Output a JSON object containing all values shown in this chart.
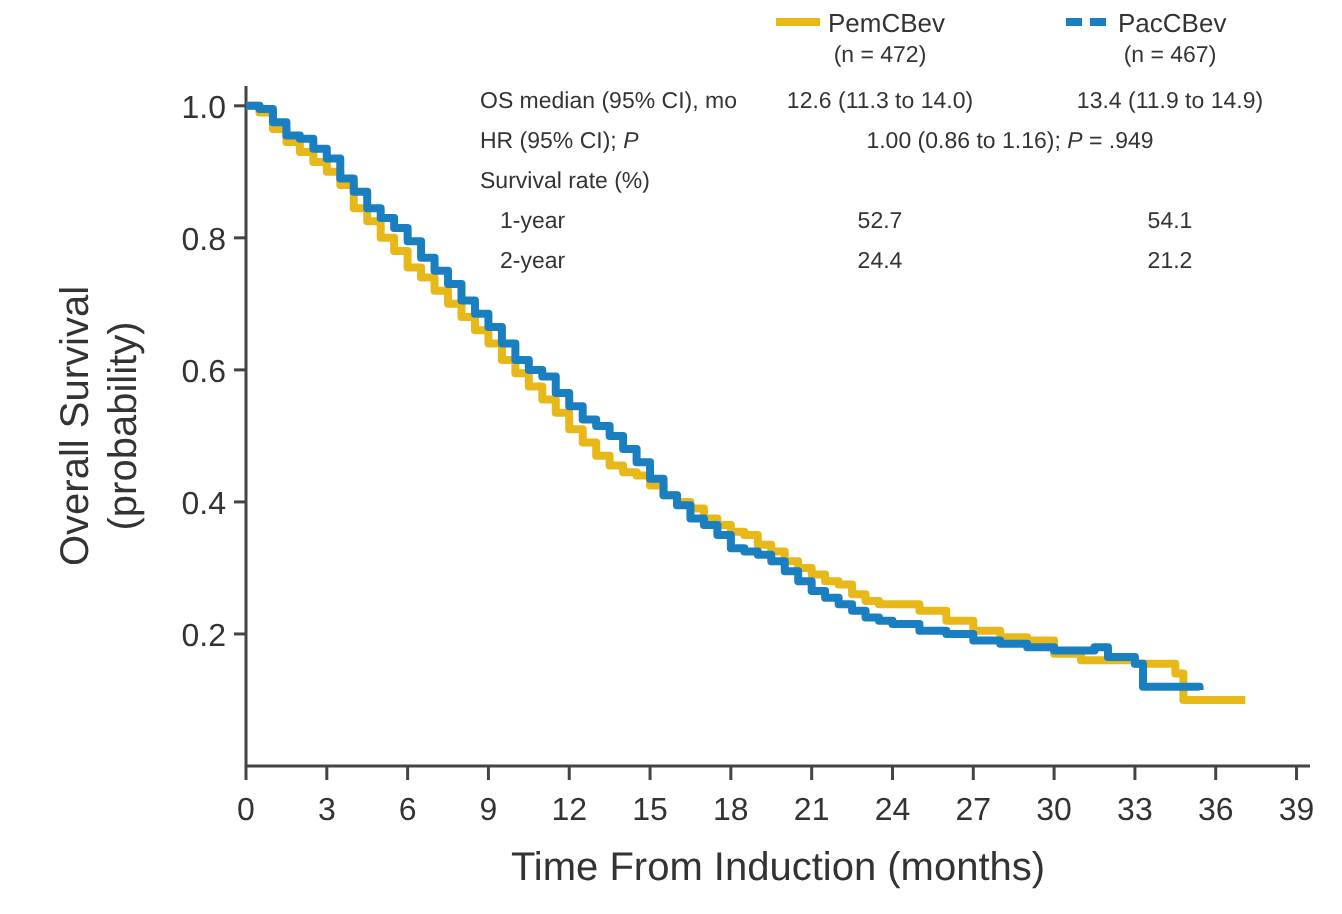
{
  "chart_data": {
    "type": "step",
    "xlabel": "Time From Induction (months)",
    "ylabel": "Overall Survival\n(probability)",
    "xlim": [
      0,
      39.5
    ],
    "ylim": [
      0,
      1.03
    ],
    "xticks": [
      0,
      3,
      6,
      9,
      12,
      15,
      18,
      21,
      24,
      27,
      30,
      33,
      36,
      39
    ],
    "yticks": [
      {
        "value": 0.2,
        "label": "0.2"
      },
      {
        "value": 0.4,
        "label": "0.4"
      },
      {
        "value": 0.6,
        "label": "0.6"
      },
      {
        "value": 0.8,
        "label": "0.8"
      },
      {
        "value": 1,
        "label": "1.0"
      }
    ],
    "grid": false,
    "legend": "top right",
    "line_style": "solid",
    "marker": "none",
    "series": [
      {
        "name": "PemCBev",
        "color": "#e8b818",
        "x": [
          0,
          0.5,
          1,
          1.5,
          2,
          2.5,
          3,
          3.5,
          4,
          4.5,
          5,
          5.5,
          6,
          6.5,
          7,
          7.5,
          8,
          8.5,
          9,
          9.5,
          10,
          10.5,
          11,
          11.5,
          12,
          12.5,
          13,
          13.5,
          14,
          14.5,
          15,
          15.5,
          16,
          16.5,
          17,
          17.5,
          18,
          18.5,
          19,
          19.5,
          20,
          20.5,
          21,
          21.5,
          22,
          22.5,
          23,
          23.5,
          24,
          25,
          26,
          27,
          28,
          29,
          30,
          31,
          32,
          33,
          34,
          34.5,
          34.8,
          37.1
        ],
        "values": [
          1,
          0.99,
          0.965,
          0.945,
          0.93,
          0.915,
          0.9,
          0.88,
          0.845,
          0.825,
          0.8,
          0.78,
          0.755,
          0.74,
          0.72,
          0.7,
          0.68,
          0.66,
          0.64,
          0.615,
          0.595,
          0.575,
          0.555,
          0.535,
          0.51,
          0.49,
          0.47,
          0.455,
          0.445,
          0.44,
          0.425,
          0.41,
          0.4,
          0.39,
          0.375,
          0.365,
          0.355,
          0.35,
          0.335,
          0.325,
          0.31,
          0.3,
          0.29,
          0.28,
          0.275,
          0.26,
          0.25,
          0.245,
          0.245,
          0.235,
          0.22,
          0.205,
          0.195,
          0.19,
          0.17,
          0.16,
          0.16,
          0.155,
          0.155,
          0.14,
          0.1,
          0.1
        ]
      },
      {
        "name": "PacCBev",
        "color": "#1a7fc1",
        "x": [
          0,
          0.5,
          1,
          1.5,
          2,
          2.5,
          3,
          3.5,
          4,
          4.5,
          5,
          5.5,
          6,
          6.5,
          7,
          7.5,
          8,
          8.5,
          9,
          9.5,
          10,
          10.5,
          11,
          11.5,
          12,
          12.5,
          13,
          13.5,
          14,
          14.5,
          15,
          15.5,
          16,
          16.5,
          17,
          17.5,
          18,
          18.5,
          19,
          19.5,
          20,
          20.5,
          21,
          21.5,
          22,
          22.5,
          23,
          23.5,
          24,
          25,
          26,
          27,
          28,
          29,
          30,
          31,
          31.5,
          32,
          33,
          33.3,
          34,
          35.4
        ],
        "values": [
          1,
          0.995,
          0.975,
          0.955,
          0.95,
          0.935,
          0.92,
          0.89,
          0.87,
          0.845,
          0.83,
          0.815,
          0.795,
          0.77,
          0.75,
          0.73,
          0.705,
          0.685,
          0.665,
          0.64,
          0.615,
          0.6,
          0.59,
          0.565,
          0.545,
          0.525,
          0.515,
          0.5,
          0.48,
          0.46,
          0.435,
          0.41,
          0.395,
          0.375,
          0.365,
          0.35,
          0.33,
          0.325,
          0.32,
          0.31,
          0.295,
          0.28,
          0.265,
          0.255,
          0.245,
          0.235,
          0.225,
          0.22,
          0.215,
          0.205,
          0.2,
          0.19,
          0.185,
          0.18,
          0.175,
          0.175,
          0.18,
          0.165,
          0.155,
          0.12,
          0.12,
          0.115
        ]
      }
    ],
    "annotations": [
      "(n = 472)",
      "(n = 467)",
      "OS median (95% CI), mo",
      "12.6 (11.3 to 14.0)",
      "13.4 (11.9 to 14.9)",
      "HR (95% CI); P",
      "1.00 (0.86 to 1.16); P = .949",
      "Survival rate (%)",
      "1-year",
      "52.7",
      "54.1",
      "2-year",
      "24.4",
      "21.2"
    ]
  }
}
